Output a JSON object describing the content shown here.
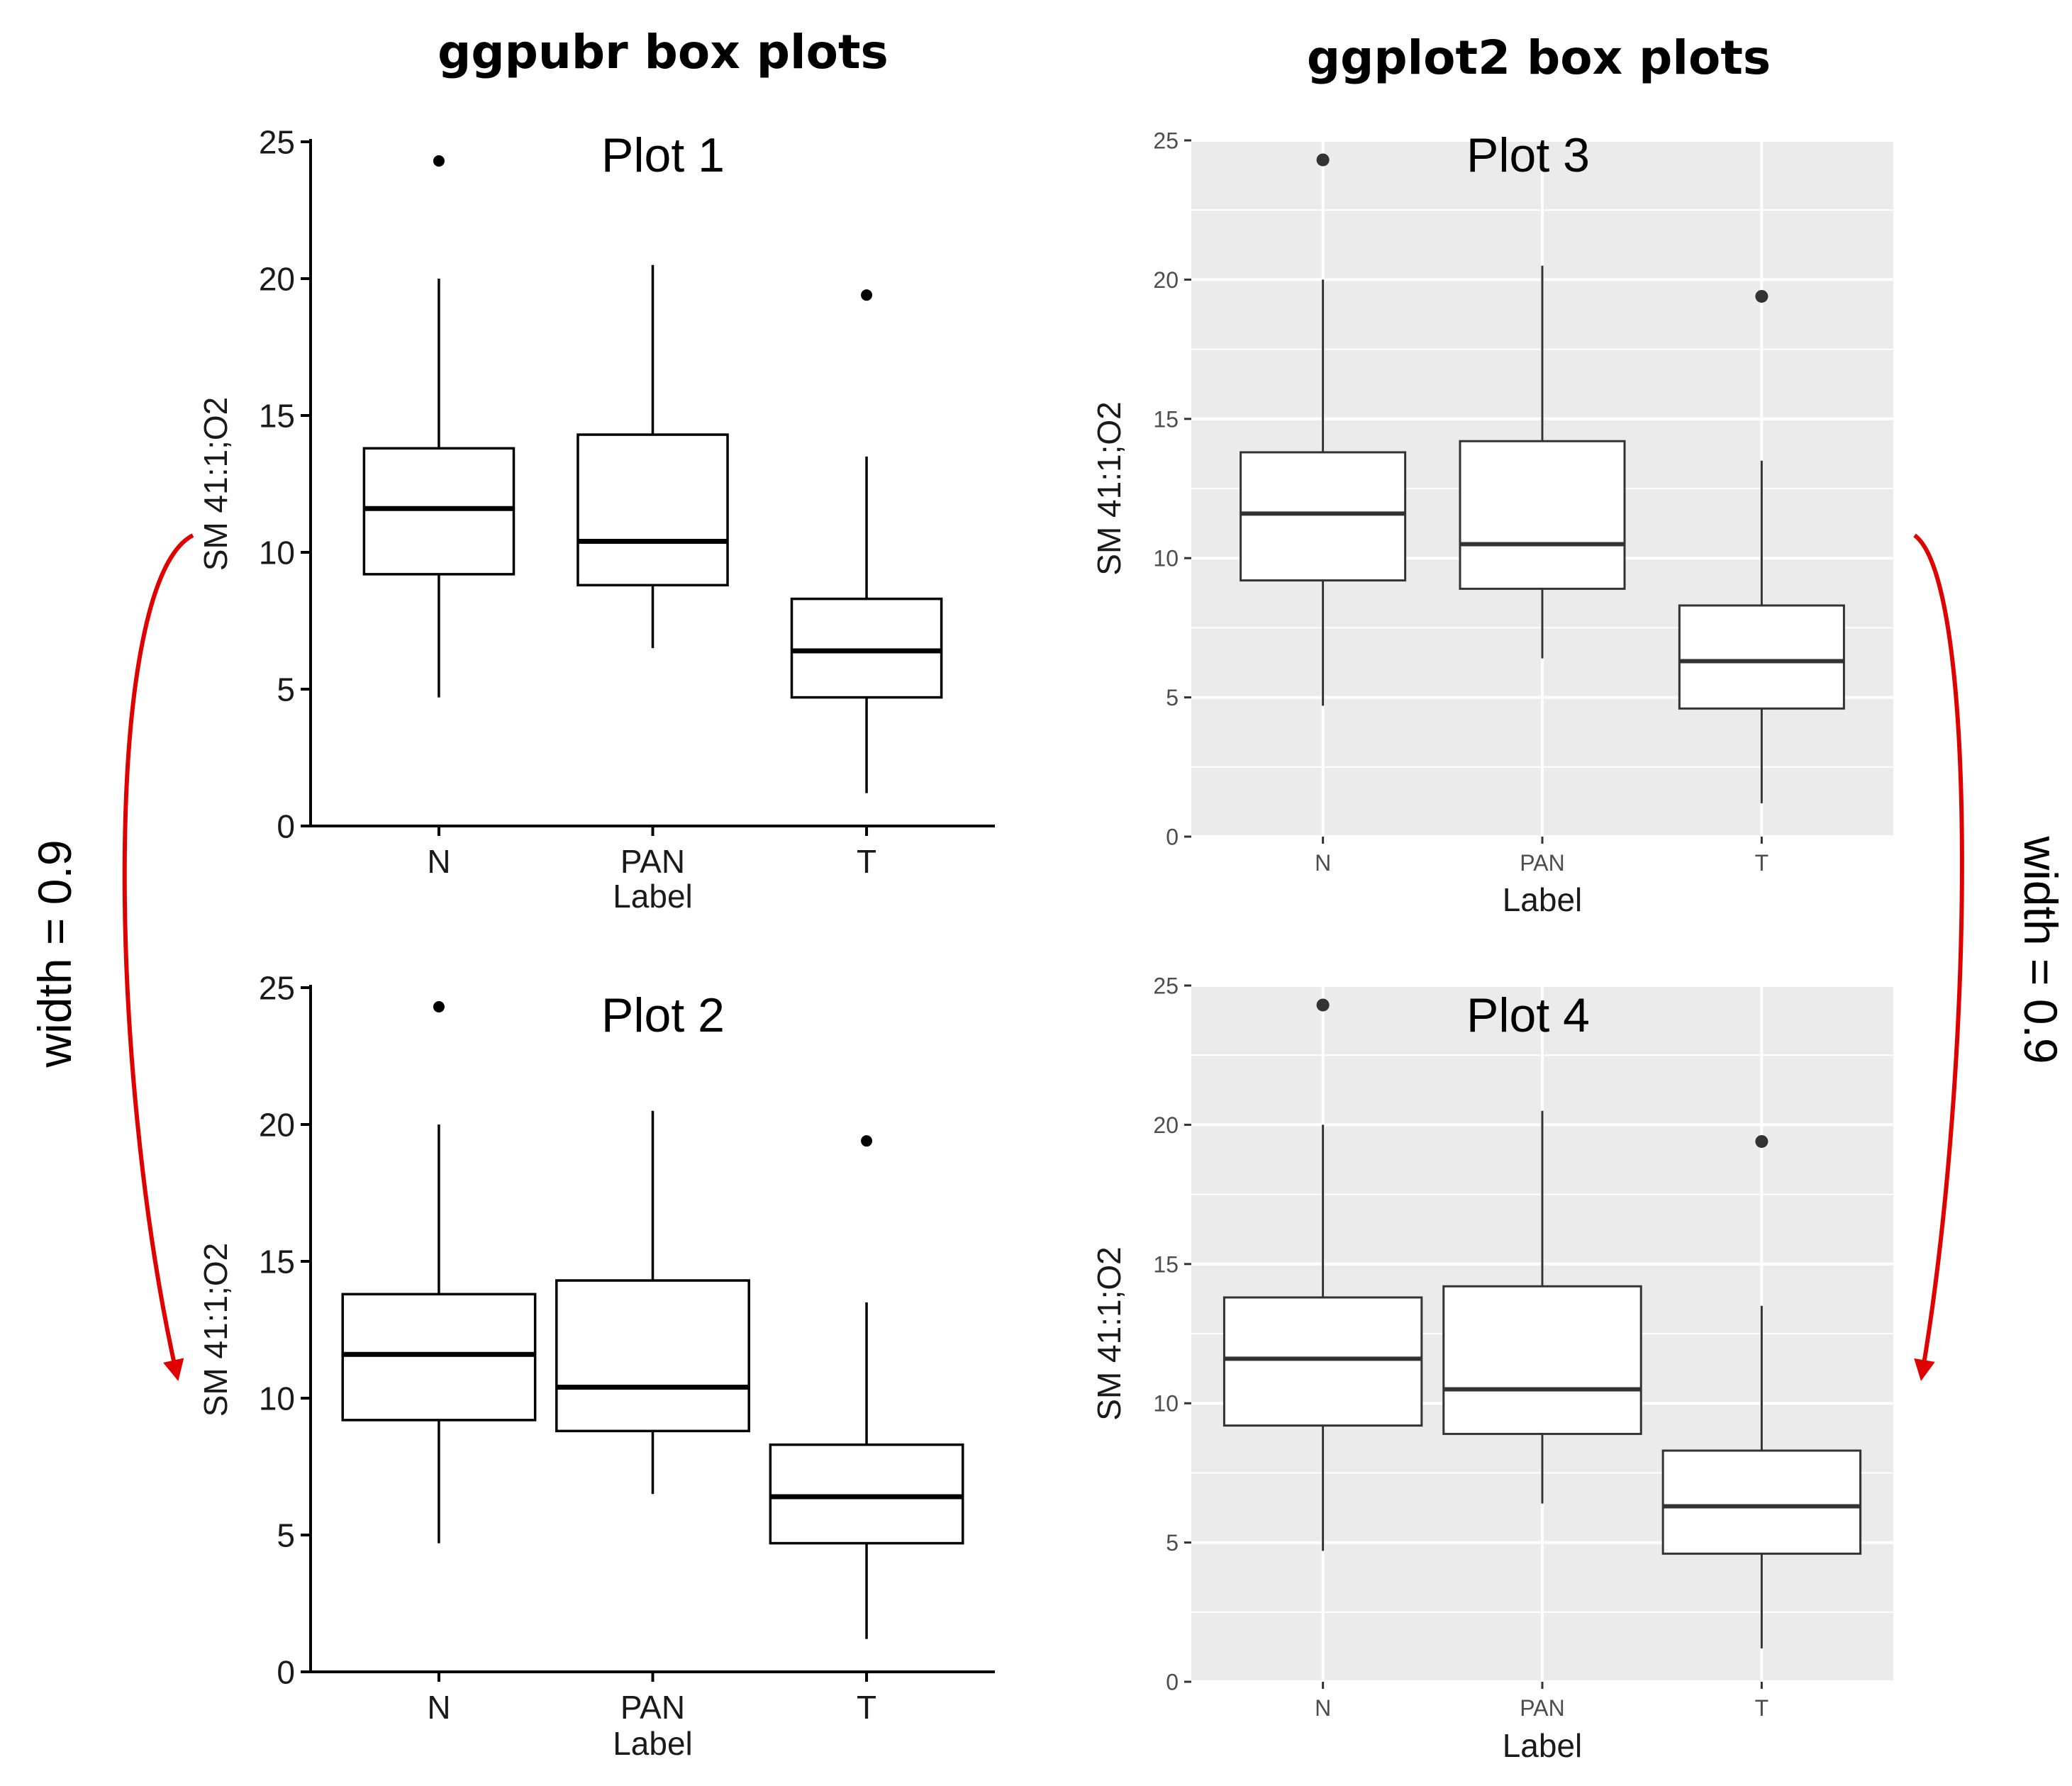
{
  "headers": {
    "left": "ggpubr box plots",
    "right": "ggplot2 box plots"
  },
  "annotations": {
    "left_width": "width = 0.9",
    "right_width": "width = 0.9",
    "arrow_color": "#e00000"
  },
  "colors": {
    "ggplot_panel_bg": "#ebebeb",
    "ggplot_grid": "#ffffff",
    "box_stroke": "#000000",
    "ggplot_box_stroke": "#333333",
    "ggplot_tick_text": "#4d4d4d"
  },
  "chart_data": [
    {
      "type": "box",
      "style": "ggpubr",
      "title": "Plot 1",
      "xlabel": "Label",
      "ylabel": "SM 41:1;O2",
      "ylim": [
        0,
        25
      ],
      "yticks": [
        0,
        5,
        10,
        15,
        20,
        25
      ],
      "box_width": 0.7,
      "categories": [
        "N",
        "PAN",
        "T"
      ],
      "boxes": [
        {
          "category": "N",
          "lower_whisker": 4.7,
          "q1": 9.2,
          "median": 11.6,
          "q3": 13.8,
          "upper_whisker": 20.0,
          "outliers": [
            24.3
          ]
        },
        {
          "category": "PAN",
          "lower_whisker": 6.5,
          "q1": 8.8,
          "median": 10.4,
          "q3": 14.3,
          "upper_whisker": 20.5,
          "outliers": []
        },
        {
          "category": "T",
          "lower_whisker": 1.2,
          "q1": 4.7,
          "median": 6.4,
          "q3": 8.3,
          "upper_whisker": 13.5,
          "outliers": [
            19.4
          ]
        }
      ]
    },
    {
      "type": "box",
      "style": "ggpubr",
      "title": "Plot 2",
      "xlabel": "Label",
      "ylabel": "SM 41:1;O2",
      "ylim": [
        0,
        25
      ],
      "yticks": [
        0,
        5,
        10,
        15,
        20,
        25
      ],
      "box_width": 0.9,
      "categories": [
        "N",
        "PAN",
        "T"
      ],
      "boxes": [
        {
          "category": "N",
          "lower_whisker": 4.7,
          "q1": 9.2,
          "median": 11.6,
          "q3": 13.8,
          "upper_whisker": 20.0,
          "outliers": [
            24.3
          ]
        },
        {
          "category": "PAN",
          "lower_whisker": 6.5,
          "q1": 8.8,
          "median": 10.4,
          "q3": 14.3,
          "upper_whisker": 20.5,
          "outliers": []
        },
        {
          "category": "T",
          "lower_whisker": 1.2,
          "q1": 4.7,
          "median": 6.4,
          "q3": 8.3,
          "upper_whisker": 13.5,
          "outliers": [
            19.4
          ]
        }
      ]
    },
    {
      "type": "box",
      "style": "ggplot2",
      "title": "Plot 3",
      "xlabel": "Label",
      "ylabel": "SM 41:1;O2",
      "ylim": [
        0,
        25
      ],
      "yticks": [
        0,
        5,
        10,
        15,
        20,
        25
      ],
      "box_width": 0.75,
      "categories": [
        "N",
        "PAN",
        "T"
      ],
      "boxes": [
        {
          "category": "N",
          "lower_whisker": 4.7,
          "q1": 9.2,
          "median": 11.6,
          "q3": 13.8,
          "upper_whisker": 20.0,
          "outliers": [
            24.3
          ]
        },
        {
          "category": "PAN",
          "lower_whisker": 6.4,
          "q1": 8.9,
          "median": 10.5,
          "q3": 14.2,
          "upper_whisker": 20.5,
          "outliers": []
        },
        {
          "category": "T",
          "lower_whisker": 1.2,
          "q1": 4.6,
          "median": 6.3,
          "q3": 8.3,
          "upper_whisker": 13.5,
          "outliers": [
            19.4
          ]
        }
      ]
    },
    {
      "type": "box",
      "style": "ggplot2",
      "title": "Plot 4",
      "xlabel": "Label",
      "ylabel": "SM 41:1;O2",
      "ylim": [
        0,
        25
      ],
      "yticks": [
        0,
        5,
        10,
        15,
        20,
        25
      ],
      "box_width": 0.9,
      "categories": [
        "N",
        "PAN",
        "T"
      ],
      "boxes": [
        {
          "category": "N",
          "lower_whisker": 4.7,
          "q1": 9.2,
          "median": 11.6,
          "q3": 13.8,
          "upper_whisker": 20.0,
          "outliers": [
            24.3
          ]
        },
        {
          "category": "PAN",
          "lower_whisker": 6.4,
          "q1": 8.9,
          "median": 10.5,
          "q3": 14.2,
          "upper_whisker": 20.5,
          "outliers": []
        },
        {
          "category": "T",
          "lower_whisker": 1.2,
          "q1": 4.6,
          "median": 6.3,
          "q3": 8.3,
          "upper_whisker": 13.5,
          "outliers": [
            19.4
          ]
        }
      ]
    }
  ]
}
